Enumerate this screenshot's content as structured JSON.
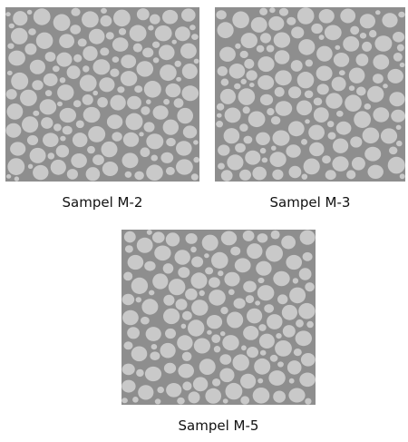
{
  "panels": [
    {
      "label": "Sampel M-2"
    },
    {
      "label": "Sampel M-3"
    },
    {
      "label": "Sampel M-5"
    }
  ]
}
